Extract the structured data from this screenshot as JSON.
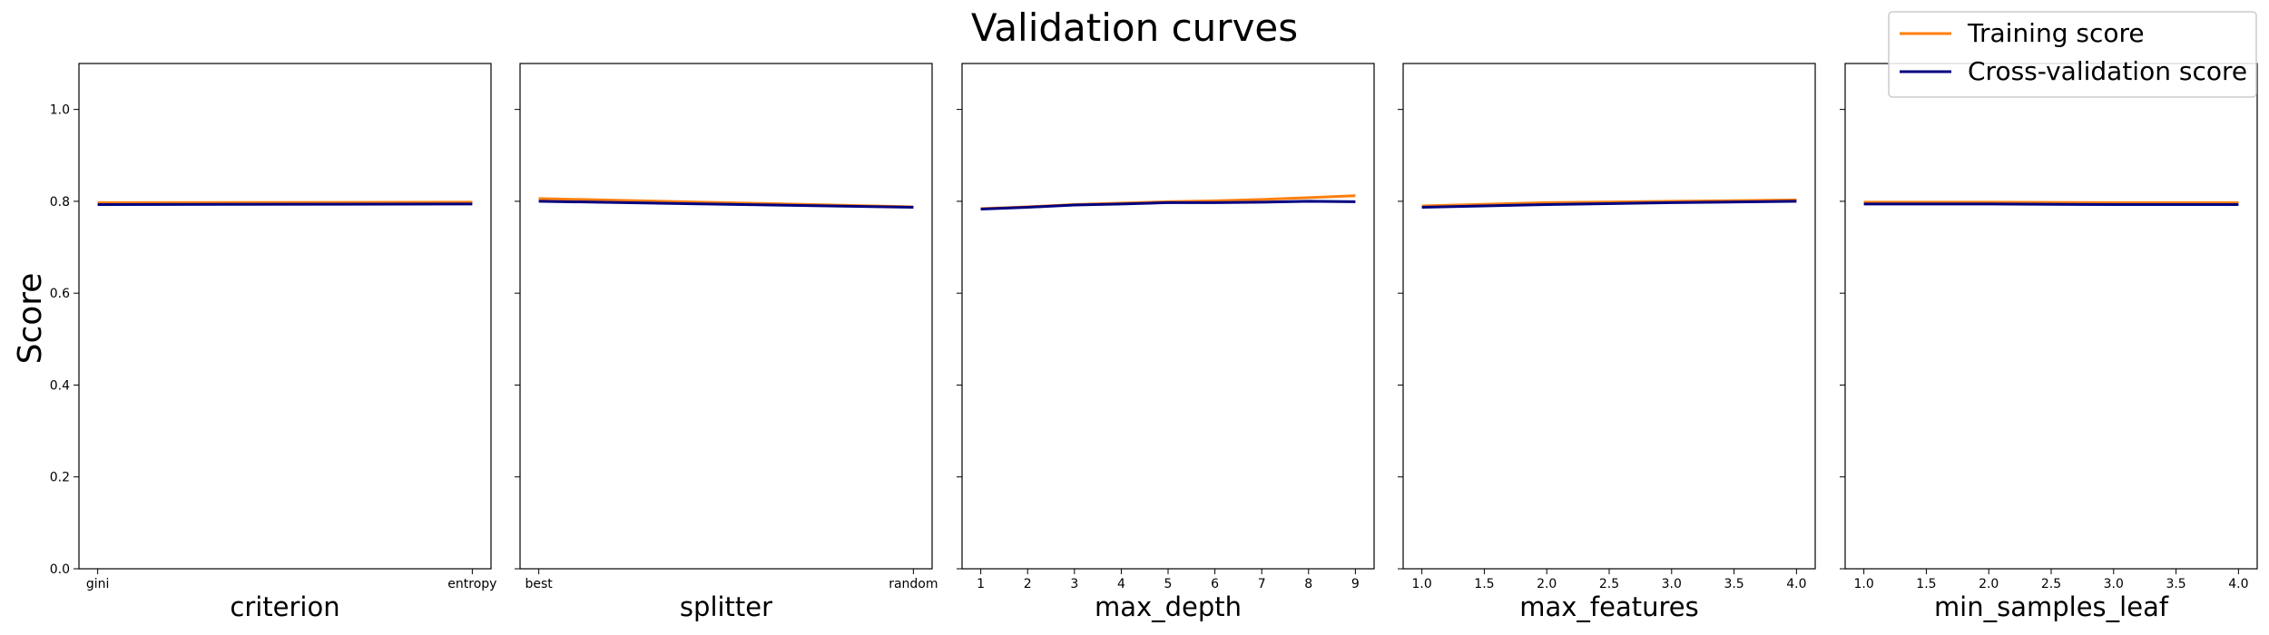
{
  "figure": {
    "title": "Validation curves",
    "ylabel": "Score",
    "legend": {
      "placement": "top-right",
      "entries": [
        {
          "label": "Training score",
          "color": "#ff7f0e"
        },
        {
          "label": "Cross-validation score",
          "color": "#000080"
        }
      ]
    }
  },
  "chart_data": [
    {
      "type": "line",
      "xlabel": "criterion",
      "x_kind": "categorical",
      "x": [
        "gini",
        "entropy"
      ],
      "xticks": [
        "gini",
        "entropy"
      ],
      "ylim": [
        0.0,
        1.1
      ],
      "yticks": [
        "0.0",
        "0.2",
        "0.4",
        "0.6",
        "0.8",
        "1.0"
      ],
      "series": [
        {
          "name": "Training score",
          "color": "#ff7f0e",
          "values": [
            0.797,
            0.798
          ]
        },
        {
          "name": "Cross-validation score",
          "color": "#000080",
          "values": [
            0.793,
            0.794
          ]
        }
      ]
    },
    {
      "type": "line",
      "xlabel": "splitter",
      "x_kind": "categorical",
      "x": [
        "best",
        "random"
      ],
      "xticks": [
        "best",
        "random"
      ],
      "ylim": [
        0.0,
        1.1
      ],
      "yticks": [
        "0.0",
        "0.2",
        "0.4",
        "0.6",
        "0.8",
        "1.0"
      ],
      "series": [
        {
          "name": "Training score",
          "color": "#ff7f0e",
          "values": [
            0.806,
            0.788
          ]
        },
        {
          "name": "Cross-validation score",
          "color": "#000080",
          "values": [
            0.8,
            0.787
          ]
        }
      ]
    },
    {
      "type": "line",
      "xlabel": "max_depth",
      "x_kind": "numeric",
      "x": [
        1,
        2,
        3,
        4,
        5,
        6,
        7,
        8,
        9
      ],
      "xlim": [
        0.6,
        9.4
      ],
      "xticks": [
        "1",
        "2",
        "3",
        "4",
        "5",
        "6",
        "7",
        "8",
        "9"
      ],
      "xtick_values": [
        1,
        2,
        3,
        4,
        5,
        6,
        7,
        8,
        9
      ],
      "ylim": [
        0.0,
        1.1
      ],
      "yticks": [
        "0.0",
        "0.2",
        "0.4",
        "0.6",
        "0.8",
        "1.0"
      ],
      "series": [
        {
          "name": "Training score",
          "color": "#ff7f0e",
          "values": [
            0.784,
            0.788,
            0.793,
            0.796,
            0.799,
            0.801,
            0.804,
            0.808,
            0.812
          ]
        },
        {
          "name": "Cross-validation score",
          "color": "#000080",
          "values": [
            0.783,
            0.787,
            0.792,
            0.794,
            0.797,
            0.797,
            0.798,
            0.8,
            0.799
          ]
        }
      ]
    },
    {
      "type": "line",
      "xlabel": "max_features",
      "x_kind": "numeric",
      "x": [
        1.0,
        2.0,
        3.0,
        4.0
      ],
      "xlim": [
        0.85,
        4.15
      ],
      "xticks": [
        "1.0",
        "1.5",
        "2.0",
        "2.5",
        "3.0",
        "3.5",
        "4.0"
      ],
      "xtick_values": [
        1.0,
        1.5,
        2.0,
        2.5,
        3.0,
        3.5,
        4.0
      ],
      "ylim": [
        0.0,
        1.1
      ],
      "yticks": [
        "0.0",
        "0.2",
        "0.4",
        "0.6",
        "0.8",
        "1.0"
      ],
      "series": [
        {
          "name": "Training score",
          "color": "#ff7f0e",
          "values": [
            0.79,
            0.797,
            0.8,
            0.803
          ]
        },
        {
          "name": "Cross-validation score",
          "color": "#000080",
          "values": [
            0.787,
            0.793,
            0.797,
            0.8
          ]
        }
      ]
    },
    {
      "type": "line",
      "xlabel": "min_samples_leaf",
      "x_kind": "numeric",
      "x": [
        1.0,
        2.0,
        3.0,
        4.0
      ],
      "xlim": [
        0.85,
        4.15
      ],
      "xticks": [
        "1.0",
        "1.5",
        "2.0",
        "2.5",
        "3.0",
        "3.5",
        "4.0"
      ],
      "xtick_values": [
        1.0,
        1.5,
        2.0,
        2.5,
        3.0,
        3.5,
        4.0
      ],
      "ylim": [
        0.0,
        1.1
      ],
      "yticks": [
        "0.0",
        "0.2",
        "0.4",
        "0.6",
        "0.8",
        "1.0"
      ],
      "series": [
        {
          "name": "Training score",
          "color": "#ff7f0e",
          "values": [
            0.798,
            0.798,
            0.797,
            0.797
          ]
        },
        {
          "name": "Cross-validation score",
          "color": "#000080",
          "values": [
            0.794,
            0.794,
            0.793,
            0.793
          ]
        }
      ]
    }
  ]
}
